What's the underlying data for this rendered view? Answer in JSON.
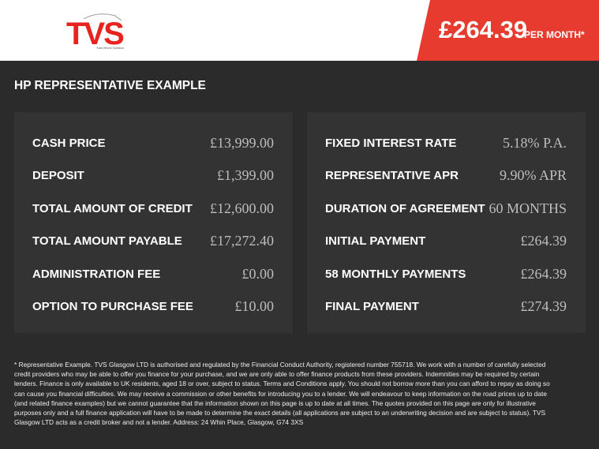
{
  "header": {
    "logo": {
      "text": "TVS",
      "tagline": "Total Vehicle Solutions",
      "color": "#e8231f"
    },
    "price": "£264.39",
    "per_month": "PER MONTH*",
    "accent": "#e63b2e"
  },
  "title": "HP REPRESENTATIVE EXAMPLE",
  "left_panel": [
    {
      "label": "CASH PRICE",
      "value": "£13,999.00"
    },
    {
      "label": "DEPOSIT",
      "value": "£1,399.00"
    },
    {
      "label": "TOTAL AMOUNT OF CREDIT",
      "value": "£12,600.00"
    },
    {
      "label": "TOTAL AMOUNT PAYABLE",
      "value": "£17,272.40"
    },
    {
      "label": "ADMINISTRATION FEE",
      "value": "£0.00"
    },
    {
      "label": "OPTION TO PURCHASE FEE",
      "value": "£10.00"
    }
  ],
  "right_panel": [
    {
      "label": "FIXED INTEREST RATE",
      "value": "5.18% P.A."
    },
    {
      "label": "REPRESENTATIVE APR",
      "value": "9.90% APR"
    },
    {
      "label": "DURATION OF AGREEMENT",
      "value": "60 MONTHS"
    },
    {
      "label": "INITIAL PAYMENT",
      "value": "£264.39"
    },
    {
      "label": "58 MONTHLY PAYMENTS",
      "value": "£264.39"
    },
    {
      "label": "FINAL PAYMENT",
      "value": "£274.39"
    }
  ],
  "disclaimer": "* Representative Example. TVS Glasgow LTD is authorised and regulated by the Financial Conduct Authority, registered number 755718. We work with a number of carefully selected credit providers who may be able to offer you finance for your purchase, and we are only able to offer finance products from these providers. Indemnities may be required by certain lenders. Finance is only available to UK residents, aged 18 or over, subject to status. Terms and Conditions apply. You should not borrow more than you can afford to repay as doing so can cause you financial difficulties. We may receive a commission or other benefits for introducing you to a lender. We will endeavour to keep information on the road prices up to date (and related finance examples) but we cannot guarantee that the information shown on this page is up to date at all times. The quotes provided on this page are only for illustrative purposes only and a full finance application will have to be made to determine the exact details (all applications are subject to an underwriting decision and are subject to status). TVS Glasgow LTD acts as a credit broker and not a lender. Address: 24 Whin Place, Glasgow, G74 3XS"
}
